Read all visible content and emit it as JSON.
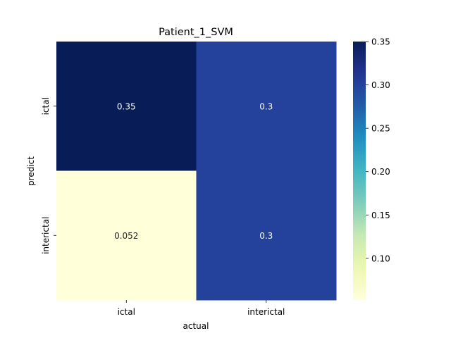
{
  "chart_data": {
    "type": "heatmap",
    "title": "Patient_1_SVM",
    "xlabel": "actual",
    "ylabel": "predict",
    "x_categories": [
      "ictal",
      "interictal"
    ],
    "y_categories": [
      "ictal",
      "interictal"
    ],
    "values": [
      [
        0.35,
        0.3
      ],
      [
        0.052,
        0.3
      ]
    ],
    "cell_labels": [
      [
        "0.35",
        "0.3"
      ],
      [
        "0.052",
        "0.3"
      ]
    ],
    "colormap": "YlGnBu",
    "colorbar": {
      "vmin": 0.052,
      "vmax": 0.35,
      "ticks": [
        0.1,
        0.15,
        0.2,
        0.25,
        0.3,
        0.35
      ],
      "tick_labels": [
        "0.10",
        "0.15",
        "0.20",
        "0.25",
        "0.30",
        "0.35"
      ]
    }
  }
}
